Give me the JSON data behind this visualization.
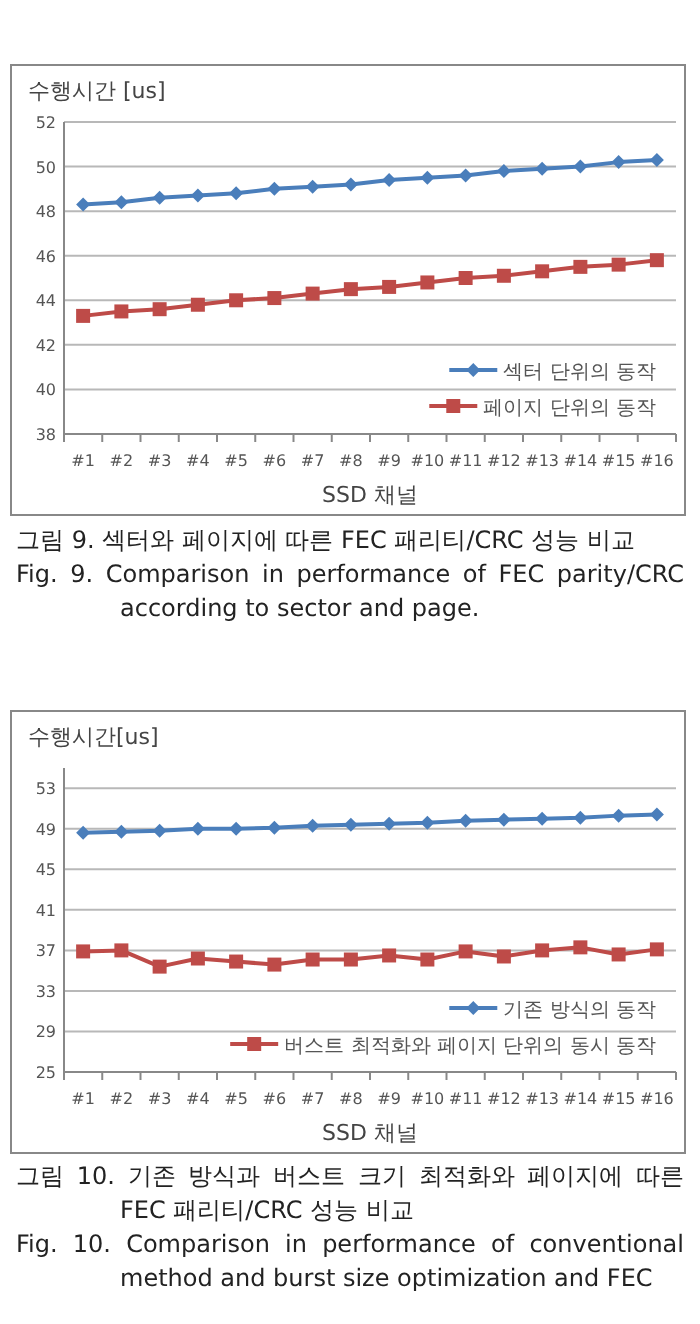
{
  "chart_data": [
    {
      "type": "line",
      "ylabel": "수행시간 [us]",
      "xlabel": "SSD 채널",
      "categories": [
        "#1",
        "#2",
        "#3",
        "#4",
        "#5",
        "#6",
        "#7",
        "#8",
        "#9",
        "#10",
        "#11",
        "#12",
        "#13",
        "#14",
        "#15",
        "#16"
      ],
      "series": [
        {
          "name": "섹터 단위의 동작",
          "color": "#4a7ebb",
          "marker": "diamond",
          "values": [
            48.3,
            48.4,
            48.6,
            48.7,
            48.8,
            49.0,
            49.1,
            49.2,
            49.4,
            49.5,
            49.6,
            49.8,
            49.9,
            50.0,
            50.2,
            50.3
          ]
        },
        {
          "name": "페이지 단위의 동작",
          "color": "#be4b48",
          "marker": "square",
          "values": [
            43.3,
            43.5,
            43.6,
            43.8,
            44.0,
            44.1,
            44.3,
            44.5,
            44.6,
            44.8,
            45.0,
            45.1,
            45.3,
            45.5,
            45.6,
            45.8
          ]
        }
      ],
      "ylim": [
        38,
        52
      ],
      "yticks": [
        38,
        40,
        42,
        44,
        46,
        48,
        50,
        52
      ],
      "grid": "y",
      "legend": "bottom right",
      "annotations": [
        "그림 9. 섹터와 페이지에 따른 FEC 패리티/CRC 성능 비교",
        "Fig. 9. Comparison in performance of FEC parity/CRC according to sector and page."
      ]
    },
    {
      "type": "line",
      "ylabel": "수행시간[us]",
      "xlabel": "SSD 채널",
      "categories": [
        "#1",
        "#2",
        "#3",
        "#4",
        "#5",
        "#6",
        "#7",
        "#8",
        "#9",
        "#10",
        "#11",
        "#12",
        "#13",
        "#14",
        "#15",
        "#16"
      ],
      "series": [
        {
          "name": "기존 방식의 동작",
          "color": "#4a7ebb",
          "marker": "diamond",
          "values": [
            48.6,
            48.7,
            48.8,
            49.0,
            49.0,
            49.1,
            49.3,
            49.4,
            49.5,
            49.6,
            49.8,
            49.9,
            50.0,
            50.1,
            50.3,
            50.4
          ]
        },
        {
          "name": "버스트 최적화와 페이지 단위의 동시 동작",
          "color": "#be4b48",
          "marker": "square",
          "values": [
            36.9,
            37.0,
            35.4,
            36.2,
            35.9,
            35.6,
            36.1,
            36.1,
            36.5,
            36.1,
            36.9,
            36.4,
            37.0,
            37.3,
            36.6,
            37.1
          ]
        }
      ],
      "ylim": [
        25,
        55
      ],
      "yticks": [
        25,
        29,
        33,
        37,
        41,
        45,
        49,
        53
      ],
      "grid": "y",
      "legend": "bottom right",
      "annotations": [
        "그림 10. 기존 방식과 버스트 크기 최적화와 페이지에 따른 FEC 패리티/CRC 성능 비교",
        "Fig. 10. Comparison in performance of conventional method and burst size optimization and FEC"
      ]
    }
  ]
}
